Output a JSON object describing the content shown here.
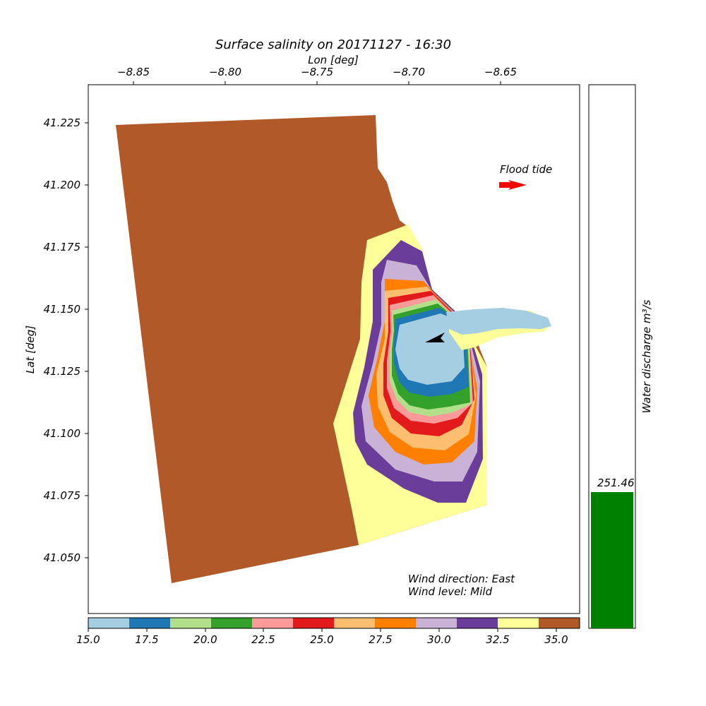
{
  "title": "Surface salinity on 20171127 - 16:30",
  "xlabel": "Lon [deg]",
  "ylabel": "Lat [deg]",
  "lon_ticks": [
    "−8.85",
    "−8.80",
    "−8.75",
    "−8.70",
    "−8.65"
  ],
  "lat_ticks": [
    "41.225",
    "41.200",
    "41.175",
    "41.150",
    "41.125",
    "41.100",
    "41.075",
    "41.050"
  ],
  "tide_label": "Flood tide",
  "wind_direction_text": "Wind direction: East",
  "wind_level_text": "Wind level: Mild",
  "colorbar": {
    "ticks": [
      "15.0",
      "17.5",
      "20.0",
      "22.5",
      "25.0",
      "27.5",
      "30.0",
      "32.5",
      "35.0"
    ],
    "colors": [
      "#a6cee3",
      "#1f78b4",
      "#b2df8a",
      "#33a02c",
      "#fb9a99",
      "#e31a1c",
      "#fdbf6f",
      "#ff7f00",
      "#cab2d6",
      "#6a3d9a",
      "#ffff99",
      "#b15928"
    ]
  },
  "discharge": {
    "label": "Water discharge m³/s",
    "value": 251.46,
    "value_text": "251.46",
    "color": "#008000"
  },
  "colors": {
    "arrow_tide": "#ff0000",
    "arrow_wind": "#000000",
    "ocean": "#b15928"
  }
}
